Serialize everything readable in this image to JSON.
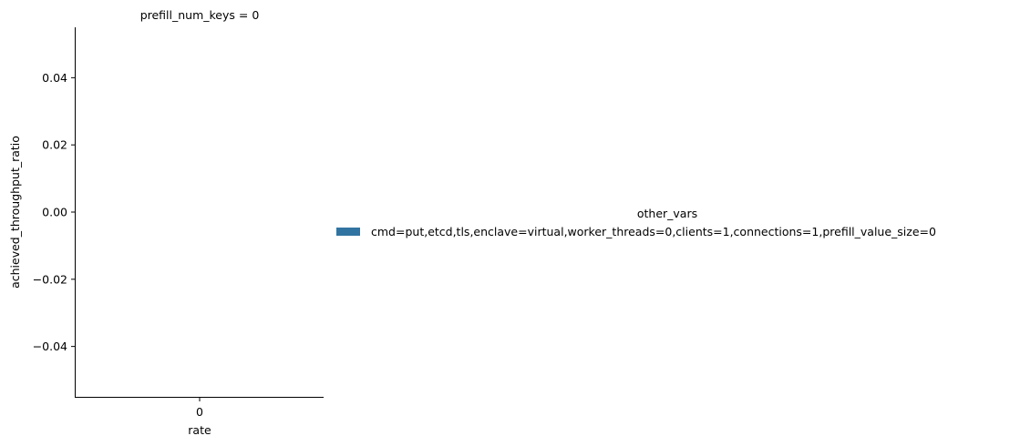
{
  "chart_data": {
    "type": "bar",
    "title": "prefill_num_keys = 0",
    "xlabel": "rate",
    "ylabel": "achieved_throughput_ratio",
    "categories": [
      "0"
    ],
    "series": [
      {
        "name": "cmd=put,etcd,tls,enclave=virtual,worker_threads=0,clients=1,connections=1,prefill_value_size=0",
        "color": "#3274a1",
        "values": [
          0
        ]
      }
    ],
    "ylim": [
      -0.055,
      0.055
    ],
    "yticks": [
      -0.04,
      -0.02,
      0.0,
      0.02,
      0.04
    ],
    "ytick_labels": [
      "−0.04",
      "−0.02",
      "0.00",
      "0.02",
      "0.04"
    ],
    "grid": false,
    "legend": {
      "title": "other_vars",
      "placement": "right"
    }
  }
}
